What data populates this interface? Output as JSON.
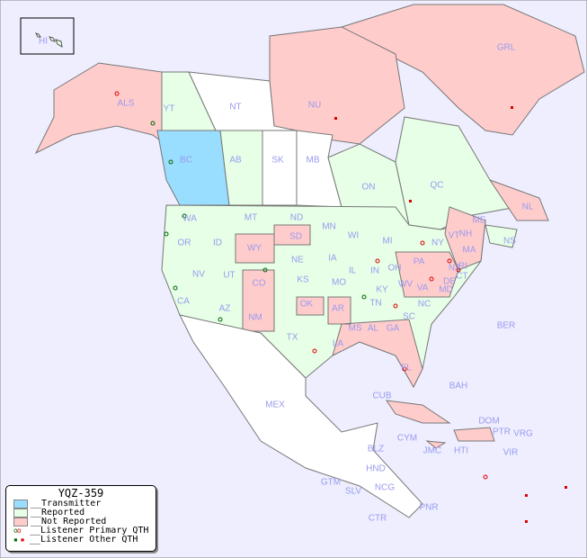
{
  "colors": {
    "ocean": "#eeeeff",
    "transmitter": "#99ddff",
    "reported": "#e6ffe6",
    "not_reported": "#ffcccc",
    "unreported_land": "#ffffff",
    "primary_green": "#006600",
    "other_red": "#dd0000",
    "label": "#9a9aef"
  },
  "legend": {
    "title": "YQZ-359",
    "items": [
      {
        "label": "__Transmitter",
        "icon": "swatch-transmitter"
      },
      {
        "label": "__Reported",
        "icon": "swatch-reported"
      },
      {
        "label": "__Not Reported",
        "icon": "swatch-not-reported"
      },
      {
        "label": "__Listener Primary QTH",
        "icon": "open-circles"
      },
      {
        "label": "__Listener Other QTH",
        "icon": "filled-squares"
      }
    ]
  },
  "labels": [
    "HI",
    "ALS",
    "YT",
    "NT",
    "NU",
    "GRL",
    "BC",
    "AB",
    "SK",
    "MB",
    "ON",
    "QC",
    "NL",
    "NS",
    "WA",
    "MT",
    "ND",
    "MN",
    "SD",
    "WI",
    "OR",
    "ID",
    "WY",
    "MI",
    "NE",
    "IA",
    "IL",
    "IN",
    "OH",
    "PA",
    "NY",
    "NV",
    "UT",
    "CO",
    "KS",
    "MO",
    "KY",
    "WV",
    "VA",
    "MD",
    "DE",
    "NJ",
    "CT",
    "MA",
    "VT",
    "NH",
    "ME",
    "RI",
    "CA",
    "AZ",
    "NM",
    "OK",
    "AR",
    "TN",
    "NC",
    "SC",
    "MS",
    "AL",
    "GA",
    "LA",
    "TX",
    "FL",
    "MEX",
    "CUB",
    "BAH",
    "DOM",
    "PTR",
    "VRG",
    "CYM",
    "JMC",
    "HTI",
    "VIR",
    "BER",
    "BLZ",
    "HND",
    "GTM",
    "SLV",
    "NCG",
    "PNR",
    "CTR"
  ]
}
